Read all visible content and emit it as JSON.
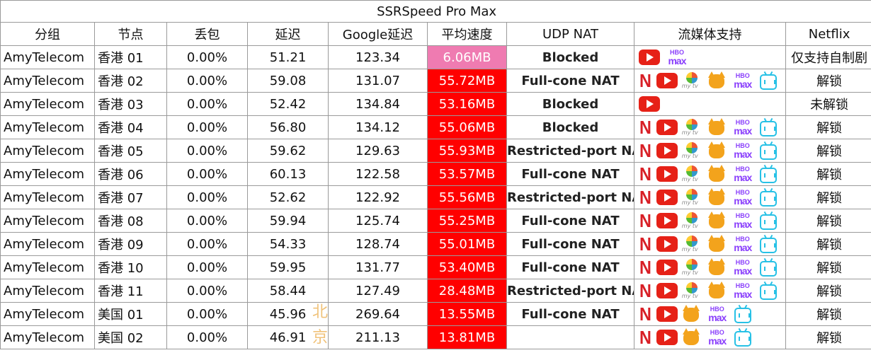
{
  "title": "SSRSpeed Pro Max",
  "headers": [
    "分组",
    "节点",
    "丢包",
    "延迟",
    "Google延迟",
    "平均速度",
    "UDP NAT",
    "流媒体支持",
    "Netflix"
  ],
  "colors": {
    "speed_slow": "#ef7bb1",
    "speed_fast": "#ff0000",
    "netflix_red": "#d81f26",
    "youtube_red": "#e62117",
    "hbo_purple": "#8a3ffc",
    "bili_blue": "#27c1e6"
  },
  "rows": [
    {
      "group": "AmyTelecom",
      "node": "香港 01",
      "loss": "0.00%",
      "latency": "51.21",
      "google": "123.34",
      "speed": "6.06MB",
      "speed_level": "slow",
      "udp": "Blocked",
      "media": [
        "youtube",
        "hbomax"
      ],
      "netflix": "仅支持自制剧"
    },
    {
      "group": "AmyTelecom",
      "node": "香港 02",
      "loss": "0.00%",
      "latency": "59.08",
      "google": "131.07",
      "speed": "55.72MB",
      "speed_level": "fast",
      "udp": "Full-cone NAT",
      "media": [
        "netflix",
        "youtube",
        "tvb",
        "fox",
        "hbomax",
        "bilibili"
      ],
      "netflix": "解锁"
    },
    {
      "group": "AmyTelecom",
      "node": "香港 03",
      "loss": "0.00%",
      "latency": "52.42",
      "google": "134.84",
      "speed": "53.16MB",
      "speed_level": "fast",
      "udp": "Blocked",
      "media": [
        "youtube"
      ],
      "netflix": "未解锁"
    },
    {
      "group": "AmyTelecom",
      "node": "香港 04",
      "loss": "0.00%",
      "latency": "56.80",
      "google": "134.12",
      "speed": "55.06MB",
      "speed_level": "fast",
      "udp": "Blocked",
      "media": [
        "netflix",
        "youtube",
        "tvb",
        "fox",
        "hbomax",
        "bilibili"
      ],
      "netflix": "解锁"
    },
    {
      "group": "AmyTelecom",
      "node": "香港 05",
      "loss": "0.00%",
      "latency": "59.62",
      "google": "129.63",
      "speed": "55.93MB",
      "speed_level": "fast",
      "udp": "Restricted-port NAT",
      "media": [
        "netflix",
        "youtube",
        "tvb",
        "fox",
        "hbomax",
        "bilibili"
      ],
      "netflix": "解锁"
    },
    {
      "group": "AmyTelecom",
      "node": "香港 06",
      "loss": "0.00%",
      "latency": "60.13",
      "google": "122.58",
      "speed": "53.57MB",
      "speed_level": "fast",
      "udp": "Full-cone NAT",
      "media": [
        "netflix",
        "youtube",
        "tvb",
        "fox",
        "hbomax",
        "bilibili"
      ],
      "netflix": "解锁"
    },
    {
      "group": "AmyTelecom",
      "node": "香港 07",
      "loss": "0.00%",
      "latency": "52.62",
      "google": "122.92",
      "speed": "55.56MB",
      "speed_level": "fast",
      "udp": "Restricted-port NAT",
      "media": [
        "netflix",
        "youtube",
        "tvb",
        "fox",
        "hbomax",
        "bilibili"
      ],
      "netflix": "解锁"
    },
    {
      "group": "AmyTelecom",
      "node": "香港 08",
      "loss": "0.00%",
      "latency": "59.94",
      "google": "125.74",
      "speed": "55.25MB",
      "speed_level": "fast",
      "udp": "Full-cone NAT",
      "media": [
        "netflix",
        "youtube",
        "tvb",
        "fox",
        "hbomax",
        "bilibili"
      ],
      "netflix": "解锁"
    },
    {
      "group": "AmyTelecom",
      "node": "香港 09",
      "loss": "0.00%",
      "latency": "54.33",
      "google": "128.74",
      "speed": "55.01MB",
      "speed_level": "fast",
      "udp": "Full-cone NAT",
      "media": [
        "netflix",
        "youtube",
        "tvb",
        "fox",
        "hbomax",
        "bilibili"
      ],
      "netflix": "解锁"
    },
    {
      "group": "AmyTelecom",
      "node": "香港 10",
      "loss": "0.00%",
      "latency": "59.95",
      "google": "131.77",
      "speed": "53.40MB",
      "speed_level": "fast",
      "udp": "Full-cone NAT",
      "media": [
        "netflix",
        "youtube",
        "tvb",
        "fox",
        "hbomax",
        "bilibili"
      ],
      "netflix": "解锁"
    },
    {
      "group": "AmyTelecom",
      "node": "香港 11",
      "loss": "0.00%",
      "latency": "58.44",
      "google": "127.49",
      "speed": "28.48MB",
      "speed_level": "fast",
      "udp": "Restricted-port NAT",
      "media": [
        "netflix",
        "youtube",
        "tvb",
        "fox",
        "hbomax",
        "bilibili"
      ],
      "netflix": "解锁"
    },
    {
      "group": "AmyTelecom",
      "node": "美国 01",
      "loss": "0.00%",
      "latency": "45.96",
      "google": "269.64",
      "speed": "13.55MB",
      "speed_level": "fast",
      "udp": "Full-cone NAT",
      "media": [
        "netflix",
        "youtube",
        "fox",
        "hbomax",
        "bilibili"
      ],
      "netflix": "解锁"
    },
    {
      "group": "AmyTelecom",
      "node": "美国 02",
      "loss": "0.00%",
      "latency": "46.91",
      "google": "211.13",
      "speed": "13.81MB",
      "speed_level": "fast",
      "udp": "",
      "media": [
        "netflix",
        "youtube",
        "fox",
        "hbomax",
        "bilibili"
      ],
      "netflix": "解锁"
    }
  ],
  "watermark": [
    "北",
    "京"
  ]
}
